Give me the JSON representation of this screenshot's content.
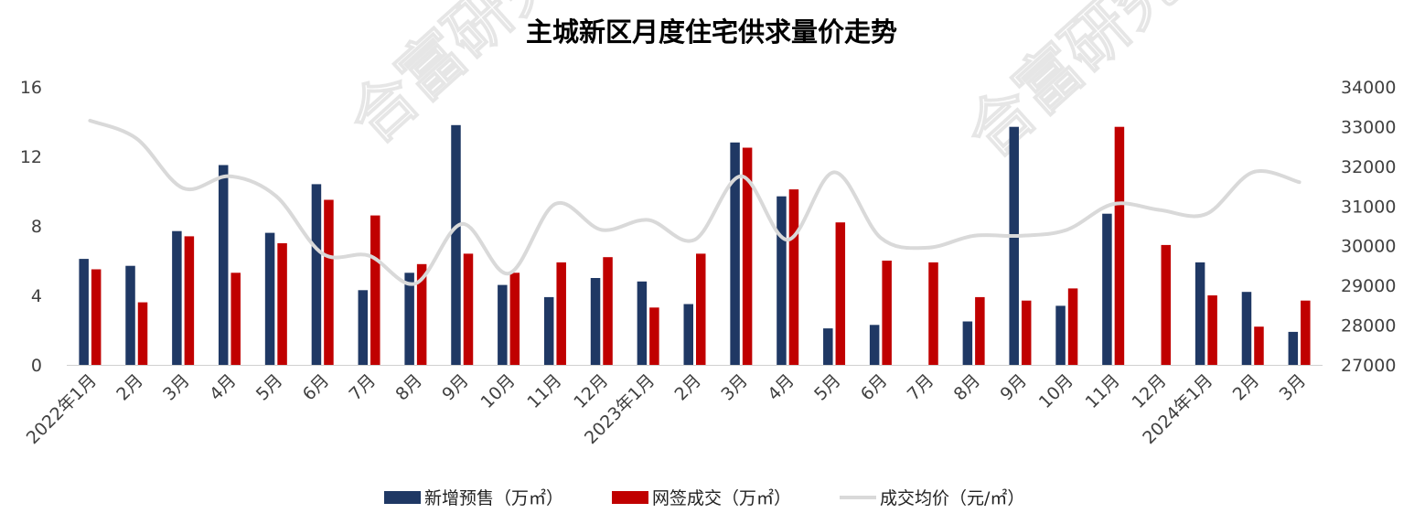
{
  "chart_data": {
    "type": "bar",
    "title": "主城新区月度住宅供求量价走势",
    "categories": [
      "2022年1月",
      "2月",
      "3月",
      "4月",
      "5月",
      "6月",
      "7月",
      "8月",
      "9月",
      "10月",
      "11月",
      "12月",
      "2023年1月",
      "2月",
      "3月",
      "4月",
      "5月",
      "6月",
      "7月",
      "8月",
      "9月",
      "10月",
      "11月",
      "12月",
      "2024年1月",
      "2月",
      "3月"
    ],
    "y_left": {
      "min": 0,
      "max": 16,
      "ticks": [
        "0",
        "4",
        "8",
        "12",
        "16"
      ]
    },
    "y_right": {
      "min": 27000,
      "max": 34000,
      "ticks": [
        "27000",
        "28000",
        "29000",
        "30000",
        "31000",
        "32000",
        "33000",
        "34000"
      ]
    },
    "series": [
      {
        "name": "新增预售（万㎡）",
        "type": "bar",
        "axis": "left",
        "color": "#1f3864",
        "values": [
          6.1,
          5.7,
          7.7,
          11.5,
          7.6,
          10.4,
          4.3,
          5.3,
          13.8,
          4.6,
          3.9,
          5.0,
          4.8,
          3.5,
          12.8,
          9.7,
          2.1,
          2.3,
          null,
          2.5,
          13.7,
          3.4,
          8.7,
          null,
          5.9,
          4.2,
          1.9
        ]
      },
      {
        "name": "网签成交（万㎡）",
        "type": "bar",
        "axis": "left",
        "color": "#c00000",
        "values": [
          5.5,
          3.6,
          7.4,
          5.3,
          7.0,
          9.5,
          8.6,
          5.8,
          6.4,
          5.3,
          5.9,
          6.2,
          3.3,
          6.4,
          12.5,
          10.1,
          8.2,
          6.0,
          5.9,
          3.9,
          3.7,
          4.4,
          13.7,
          6.9,
          4.0,
          2.2,
          3.7
        ]
      },
      {
        "name": "成交均价（元/㎡）",
        "type": "line",
        "axis": "right",
        "color": "#d9d9d9",
        "values": [
          33150,
          32700,
          31450,
          31750,
          31250,
          29800,
          29750,
          29050,
          30550,
          29300,
          31050,
          30400,
          30650,
          30150,
          31750,
          30150,
          31850,
          30200,
          29950,
          30250,
          30250,
          30400,
          31050,
          30900,
          30800,
          31850,
          31600
        ]
      }
    ],
    "legend_position": "bottom",
    "grid": false
  },
  "watermark": "合富研究"
}
